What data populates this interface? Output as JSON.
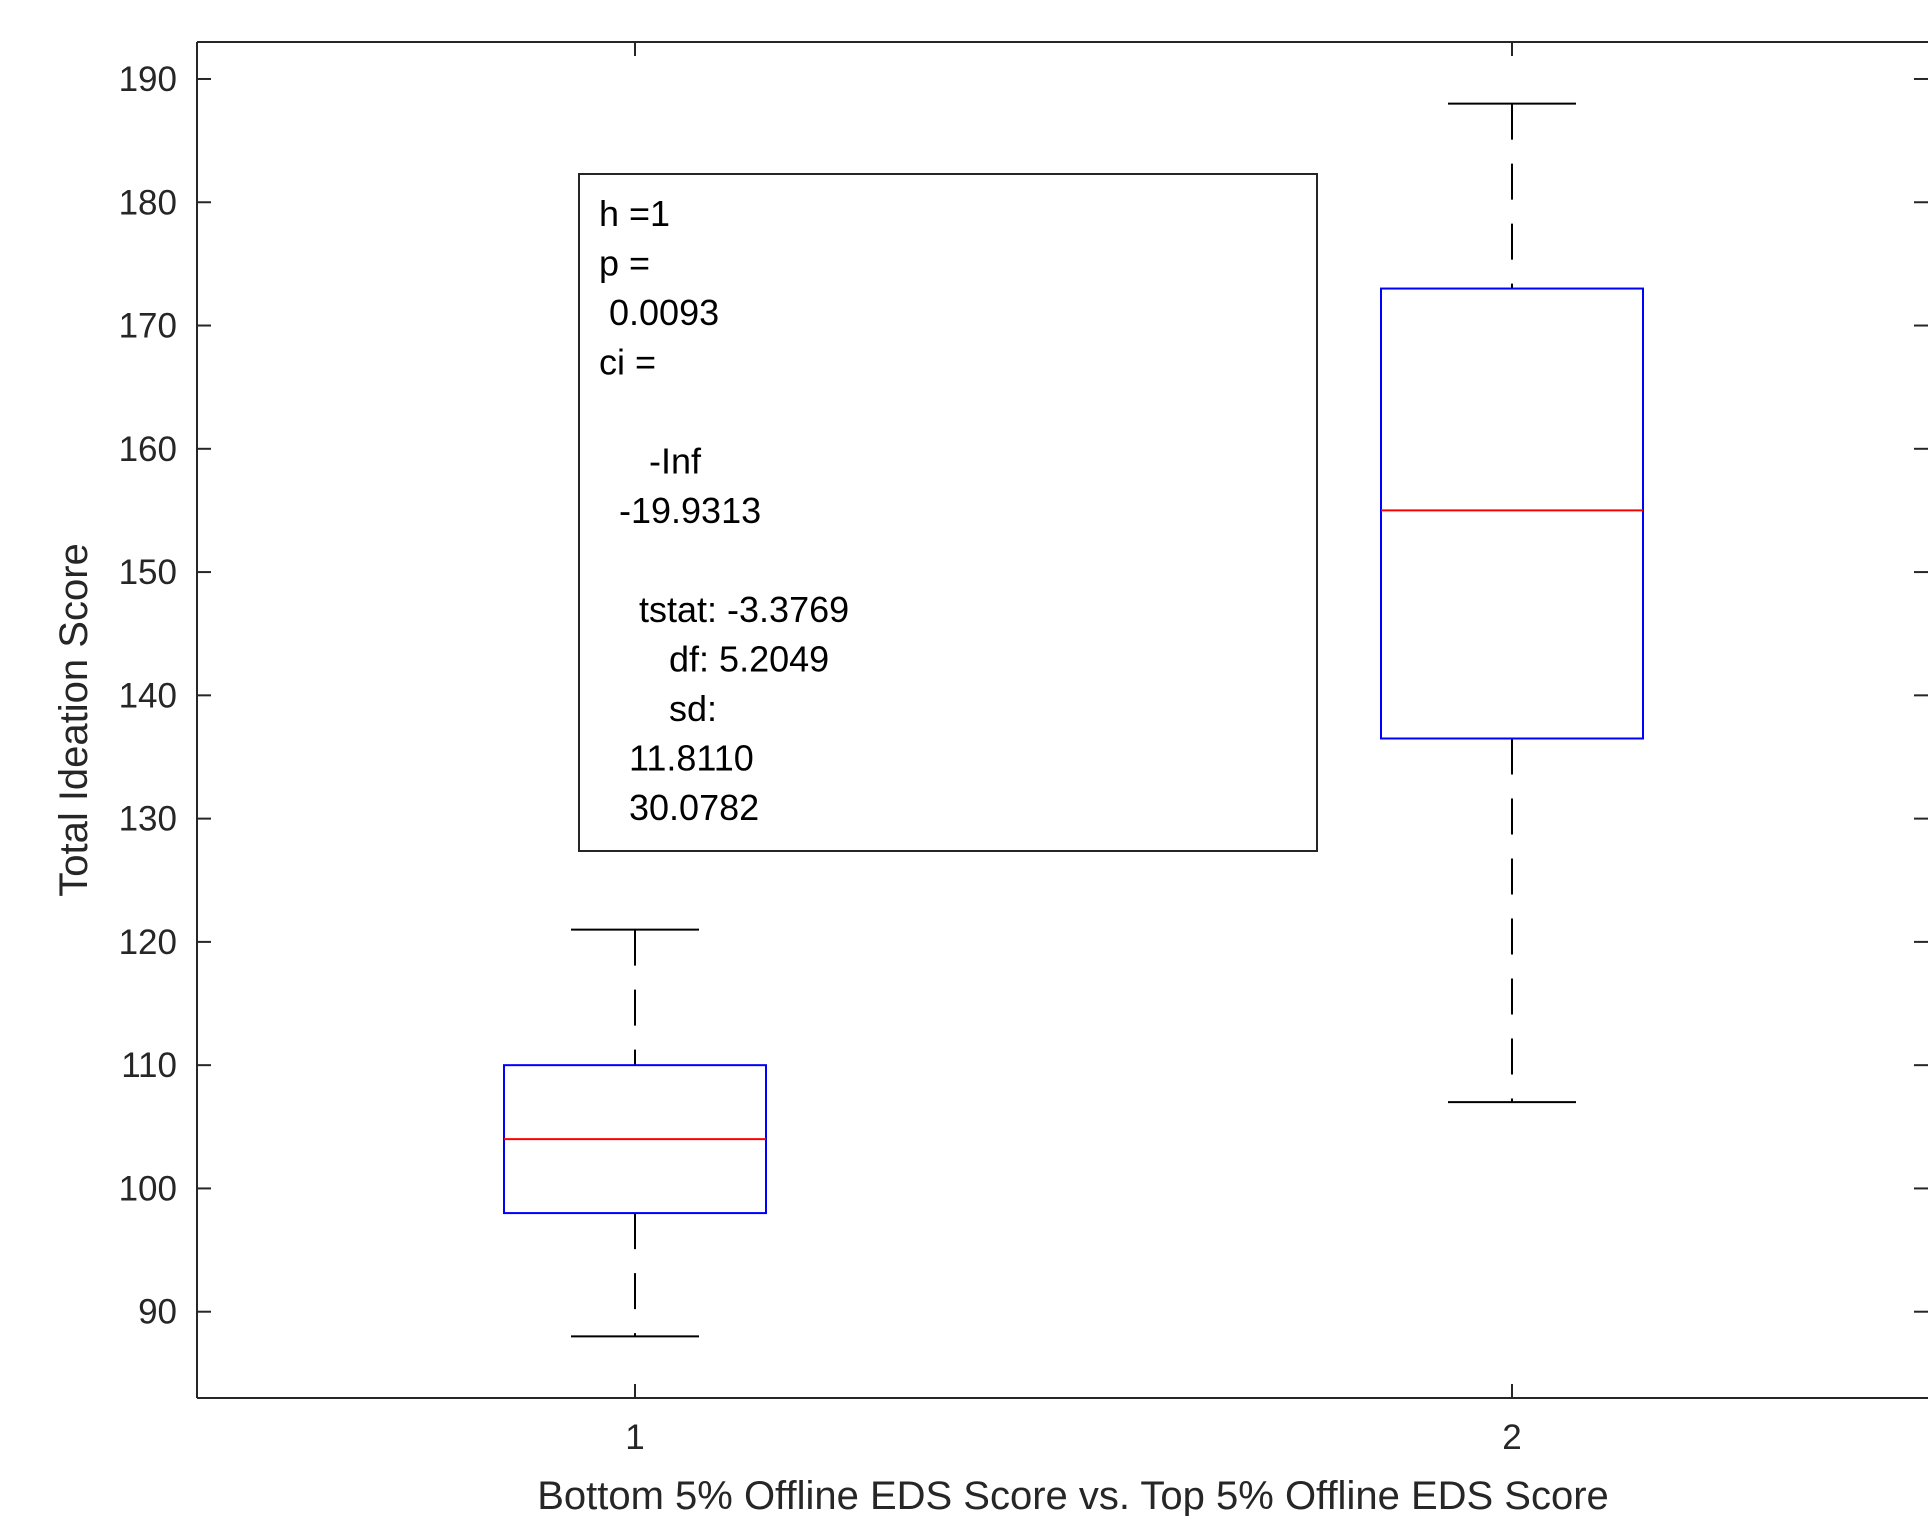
{
  "chart_data": {
    "type": "box",
    "xlabel": "Bottom 5% Offline EDS Score vs. Top 5% Offline EDS Score",
    "ylabel": "Total Ideation Score",
    "x_tick_labels": [
      "1",
      "2"
    ],
    "y_ticks": [
      90,
      100,
      110,
      120,
      130,
      140,
      150,
      160,
      170,
      180,
      190
    ],
    "ylim": [
      83,
      193
    ],
    "grid": false,
    "boxes": [
      {
        "group": "1",
        "whisker_low": 88,
        "q1": 98,
        "median": 104,
        "q3": 110,
        "whisker_high": 121
      },
      {
        "group": "2",
        "whisker_low": 107,
        "q1": 136.5,
        "median": 155,
        "q3": 173,
        "whisker_high": 188
      }
    ],
    "colors": {
      "box": "#0000ff",
      "median": "#ff0000",
      "whisker": "#000000",
      "axis": "#262626"
    },
    "annotation": {
      "lines": [
        "h =1",
        "p =",
        " 0.0093",
        "ci =",
        "",
        "     -Inf",
        "  -19.9313",
        "",
        "    tstat: -3.3769",
        "       df: 5.2049",
        "       sd:",
        "   11.8110",
        "   30.0782"
      ]
    }
  }
}
